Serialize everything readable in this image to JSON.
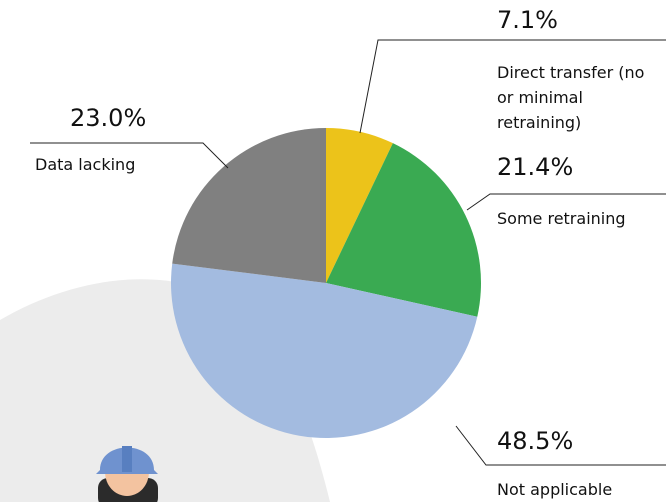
{
  "chart_data": {
    "type": "pie",
    "categories": [
      "Direct transfer (no or minimal retraining)",
      "Some retraining",
      "Not applicable",
      "Data lacking"
    ],
    "values": [
      7.1,
      21.4,
      48.5,
      23.0
    ],
    "value_labels": [
      "7.1%",
      "21.4%",
      "48.5%",
      "23.0%"
    ],
    "colors": [
      "#ecc31a",
      "#3aaa52",
      "#a3bbe0",
      "#808080"
    ]
  }
}
